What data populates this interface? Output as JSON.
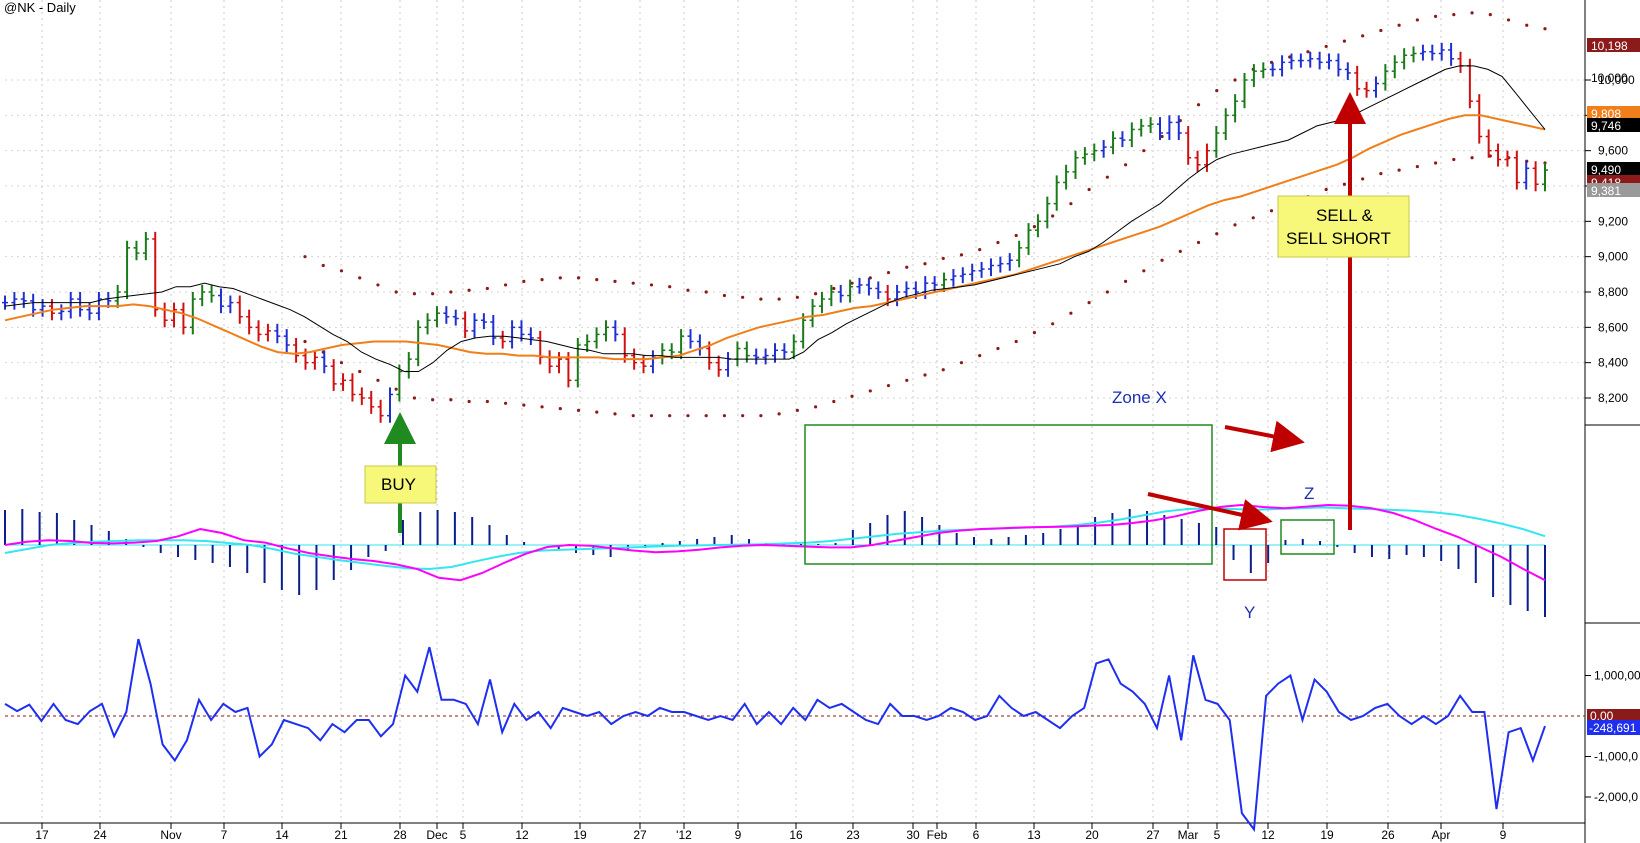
{
  "chart_data": {
    "type": "line",
    "title": "@NK - Daily",
    "x_tick_labels": [
      "17",
      "24",
      "Nov",
      "7",
      "14",
      "21",
      "28",
      "Dec",
      "5",
      "12",
      "19",
      "27",
      "'12",
      "9",
      "16",
      "23",
      "30",
      "Feb",
      "6",
      "13",
      "20",
      "27",
      "Mar",
      "5",
      "12",
      "19",
      "26",
      "Apr",
      "9"
    ],
    "price_panel": {
      "y_ticks": [
        "8,200",
        "8,400",
        "8,600",
        "8,800",
        "9,000",
        "9,200",
        "9,400",
        "9,600",
        "9,800",
        "10,000"
      ],
      "ylim": [
        8000,
        10450
      ],
      "close": [
        8740,
        8760,
        8750,
        8700,
        8720,
        8680,
        8690,
        8760,
        8700,
        8680,
        8760,
        8750,
        8800,
        9050,
        9020,
        9100,
        8700,
        8640,
        8700,
        8600,
        8760,
        8800,
        8780,
        8720,
        8740,
        8660,
        8600,
        8560,
        8580,
        8550,
        8500,
        8440,
        8400,
        8430,
        8380,
        8280,
        8300,
        8220,
        8200,
        8150,
        8100,
        8220,
        8350,
        8420,
        8600,
        8640,
        8680,
        8660,
        8650,
        8580,
        8640,
        8630,
        8540,
        8520,
        8600,
        8560,
        8540,
        8430,
        8380,
        8420,
        8300,
        8500,
        8520,
        8560,
        8600,
        8560,
        8440,
        8400,
        8380,
        8430,
        8470,
        8460,
        8550,
        8520,
        8480,
        8400,
        8360,
        8420,
        8480,
        8440,
        8430,
        8440,
        8470,
        8460,
        8520,
        8640,
        8720,
        8760,
        8800,
        8780,
        8830,
        8840,
        8820,
        8800,
        8760,
        8800,
        8820,
        8800,
        8850,
        8840,
        8870,
        8890,
        8900,
        8920,
        8930,
        8950,
        8960,
        8980,
        9050,
        9150,
        9200,
        9300,
        9420,
        9480,
        9560,
        9580,
        9600,
        9620,
        9670,
        9660,
        9720,
        9740,
        9750,
        9700,
        9760,
        9700,
        9560,
        9520,
        9600,
        9700,
        9800,
        9880,
        10000,
        10050,
        10060,
        10060,
        10100,
        10110,
        10110,
        10120,
        10100,
        10110,
        10060,
        10040,
        9950,
        9940,
        9980,
        10050,
        10100,
        10140,
        10150,
        10160,
        10150,
        10170,
        10120,
        10080,
        9880,
        9680,
        9600,
        9550,
        9560,
        9420,
        9500,
        9410,
        9490
      ],
      "ema_short": {
        "color": "#000000",
        "values": [
          8720,
          8730,
          8740,
          8740,
          8740,
          8740,
          8740,
          8760,
          8770,
          8780,
          8790,
          8800,
          8830,
          8830,
          8850,
          8830,
          8820,
          8790,
          8760,
          8730,
          8700,
          8660,
          8610,
          8560,
          8520,
          8460,
          8420,
          8390,
          8350,
          8350,
          8400,
          8470,
          8520,
          8540,
          8550,
          8550,
          8540,
          8530,
          8520,
          8500,
          8480,
          8470,
          8450,
          8450,
          8450,
          8440,
          8440,
          8430,
          8430,
          8430,
          8430,
          8420,
          8420,
          8420,
          8420,
          8420,
          8460,
          8530,
          8570,
          8620,
          8660,
          8700,
          8740,
          8770,
          8790,
          8810,
          8820,
          8830,
          8840,
          8860,
          8880,
          8900,
          8920,
          8940,
          8960,
          9000,
          9030,
          9080,
          9140,
          9200,
          9250,
          9300,
          9370,
          9440,
          9500,
          9550,
          9580,
          9600,
          9620,
          9640,
          9660,
          9700,
          9740,
          9760,
          9780,
          9820,
          9860,
          9900,
          9940,
          9980,
          10020,
          10060,
          10080,
          10080,
          10060,
          10020,
          9920,
          9820,
          9720
        ]
      },
      "ema_long": {
        "color": "#f07f1a",
        "values": [
          8640,
          8660,
          8680,
          8700,
          8710,
          8720,
          8720,
          8720,
          8730,
          8720,
          8700,
          8680,
          8650,
          8610,
          8570,
          8530,
          8490,
          8460,
          8450,
          8460,
          8480,
          8500,
          8510,
          8520,
          8520,
          8520,
          8510,
          8500,
          8480,
          8460,
          8450,
          8450,
          8440,
          8440,
          8430,
          8430,
          8430,
          8430,
          8420,
          8420,
          8420,
          8430,
          8440,
          8470,
          8500,
          8540,
          8570,
          8600,
          8620,
          8640,
          8660,
          8670,
          8690,
          8710,
          8720,
          8740,
          8760,
          8780,
          8800,
          8820,
          8840,
          8860,
          8880,
          8900,
          8930,
          8960,
          8990,
          9020,
          9050,
          9080,
          9110,
          9140,
          9170,
          9210,
          9250,
          9290,
          9320,
          9340,
          9370,
          9400,
          9430,
          9460,
          9490,
          9520,
          9560,
          9610,
          9650,
          9690,
          9720,
          9750,
          9780,
          9800,
          9800,
          9780,
          9760,
          9740,
          9720
        ]
      },
      "upper_band": [
        9000,
        8950,
        8920,
        8880,
        8840,
        8800,
        8790,
        8790,
        8800,
        8810,
        8820,
        8840,
        8860,
        8870,
        8880,
        8880,
        8870,
        8860,
        8850,
        8840,
        8830,
        8810,
        8800,
        8780,
        8770,
        8760,
        8760,
        8770,
        8790,
        8820,
        8850,
        8880,
        8910,
        8940,
        8960,
        8990,
        9010,
        9040,
        9080,
        9120,
        9170,
        9230,
        9300,
        9380,
        9450,
        9520,
        9600,
        9680,
        9770,
        9860,
        9940,
        10000,
        10060,
        10100,
        10130,
        10160,
        10190,
        10220,
        10250,
        10280,
        10310,
        10340,
        10360,
        10370,
        10380,
        10370,
        10340,
        10310,
        10290
      ],
      "lower_band": [
        8520,
        8460,
        8400,
        8350,
        8300,
        8250,
        8200,
        8190,
        8190,
        8180,
        8180,
        8170,
        8160,
        8150,
        8140,
        8130,
        8120,
        8110,
        8100,
        8100,
        8100,
        8100,
        8100,
        8100,
        8100,
        8100,
        8110,
        8130,
        8150,
        8180,
        8210,
        8240,
        8270,
        8300,
        8330,
        8360,
        8400,
        8440,
        8480,
        8520,
        8570,
        8620,
        8680,
        8740,
        8800,
        8860,
        8920,
        8980,
        9030,
        9080,
        9130,
        9180,
        9220,
        9260,
        9300,
        9340,
        9380,
        9410,
        9440,
        9470,
        9490,
        9510,
        9530,
        9550,
        9560,
        9570,
        9560,
        9540,
        9530
      ]
    },
    "macd_panel": {
      "macd_line": {
        "color": "#ff00ff",
        "values": [
          0,
          8,
          12,
          10,
          5,
          4,
          6,
          10,
          22,
          40,
          30,
          12,
          6,
          -8,
          -20,
          -28,
          -35,
          -40,
          -48,
          -60,
          -82,
          -88,
          -70,
          -45,
          -22,
          -5,
          0,
          -2,
          -8,
          -14,
          -18,
          -16,
          -12,
          -6,
          -2,
          0,
          -2,
          -4,
          -6,
          -6,
          0,
          10,
          20,
          30,
          36,
          40,
          42,
          44,
          45,
          46,
          48,
          50,
          55,
          62,
          72,
          85,
          95,
          100,
          95,
          92,
          96,
          100,
          98,
          92,
          80,
          62,
          40,
          20,
          -5,
          -30,
          -60,
          -88
        ]
      },
      "signal_line": {
        "color": "#33e6f0",
        "values": [
          -20,
          -10,
          0,
          5,
          8,
          10,
          12,
          12,
          12,
          10,
          5,
          0,
          -10,
          -22,
          -30,
          -38,
          -45,
          -52,
          -58,
          -60,
          -55,
          -42,
          -30,
          -20,
          -14,
          -12,
          -10,
          -8,
          -6,
          -4,
          -2,
          -1,
          0,
          1,
          2,
          4,
          6,
          10,
          16,
          22,
          28,
          32,
          36,
          38,
          40,
          42,
          44,
          46,
          50,
          56,
          64,
          74,
          84,
          90,
          92,
          90,
          88,
          90,
          92,
          94,
          92,
          90,
          88,
          86,
          82,
          76,
          66,
          54,
          40,
          22
        ]
      },
      "histogram": [
        35,
        36,
        33,
        32,
        25,
        20,
        14,
        6,
        -2,
        -8,
        -12,
        -15,
        -18,
        -22,
        -28,
        -38,
        -45,
        -50,
        -45,
        -35,
        -25,
        -12,
        -6,
        25,
        33,
        35,
        33,
        28,
        20,
        10,
        3,
        0,
        -4,
        -8,
        -10,
        -12,
        -6,
        -3,
        2,
        4,
        6,
        8,
        10,
        6,
        2,
        1,
        1,
        1,
        2,
        15,
        22,
        30,
        34,
        28,
        20,
        12,
        8,
        6,
        8,
        10,
        12,
        16,
        20,
        28,
        32,
        36,
        34,
        30,
        26,
        22,
        18,
        -15,
        -28,
        -18,
        5,
        6,
        4,
        -2,
        -8,
        -12,
        -14,
        -10,
        -12,
        -16,
        -24,
        -38,
        -52,
        -60,
        -66,
        -72
      ]
    },
    "volume_osc_panel": {
      "y_ticks": [
        "1,000,00",
        "-1,000,0",
        "-2,000,0"
      ],
      "zero_label": "0.00",
      "last_label": "-248,691",
      "color": "#1f2ff0",
      "values": [
        300,
        120,
        280,
        -120,
        300,
        -100,
        -200,
        120,
        300,
        -500,
        100,
        1900,
        800,
        -700,
        -1100,
        -600,
        400,
        -100,
        300,
        100,
        200,
        -1000,
        -700,
        -100,
        -200,
        -300,
        -600,
        -200,
        -400,
        -100,
        -100,
        -500,
        -200,
        1000,
        600,
        1700,
        400,
        400,
        300,
        -200,
        900,
        -400,
        300,
        -100,
        100,
        -300,
        200,
        100,
        0,
        100,
        -200,
        0,
        100,
        0,
        200,
        100,
        100,
        0,
        -100,
        0,
        -100,
        300,
        -200,
        100,
        -200,
        200,
        -100,
        400,
        200,
        300,
        100,
        -100,
        -200,
        300,
        0,
        0,
        -100,
        0,
        200,
        100,
        -100,
        0,
        500,
        200,
        0,
        100,
        -100,
        -300,
        0,
        200,
        1300,
        1400,
        800,
        600,
        300,
        -300,
        1000,
        -600,
        1500,
        400,
        300,
        -100,
        -2400,
        -2800,
        500,
        800,
        1000,
        -100,
        900,
        600,
        100,
        -100,
        0,
        200,
        300,
        0,
        -200,
        0,
        -200,
        0,
        500,
        100,
        100,
        -2300,
        -400,
        -300,
        -1100,
        -250
      ]
    },
    "price_tags": [
      {
        "text": "10,198",
        "color": "#8b1a1a"
      },
      {
        "text": "10,000",
        "color": "none"
      },
      {
        "text": "9,808",
        "color": "#f07f1a"
      },
      {
        "text": "9,746",
        "color": "#000000"
      },
      {
        "text": "9,490",
        "color": "#000000"
      },
      {
        "text": "9,418",
        "color": "#8b1a1a"
      },
      {
        "text": "9,381",
        "color": "#9a9a9a"
      }
    ],
    "annotations": {
      "buy": "BUY",
      "sell": "SELL & SELL SHORT",
      "sell_line1": "SELL &",
      "sell_line2": "SELL SHORT",
      "zone_x": "Zone X",
      "y": "Y",
      "z": "Z"
    }
  }
}
